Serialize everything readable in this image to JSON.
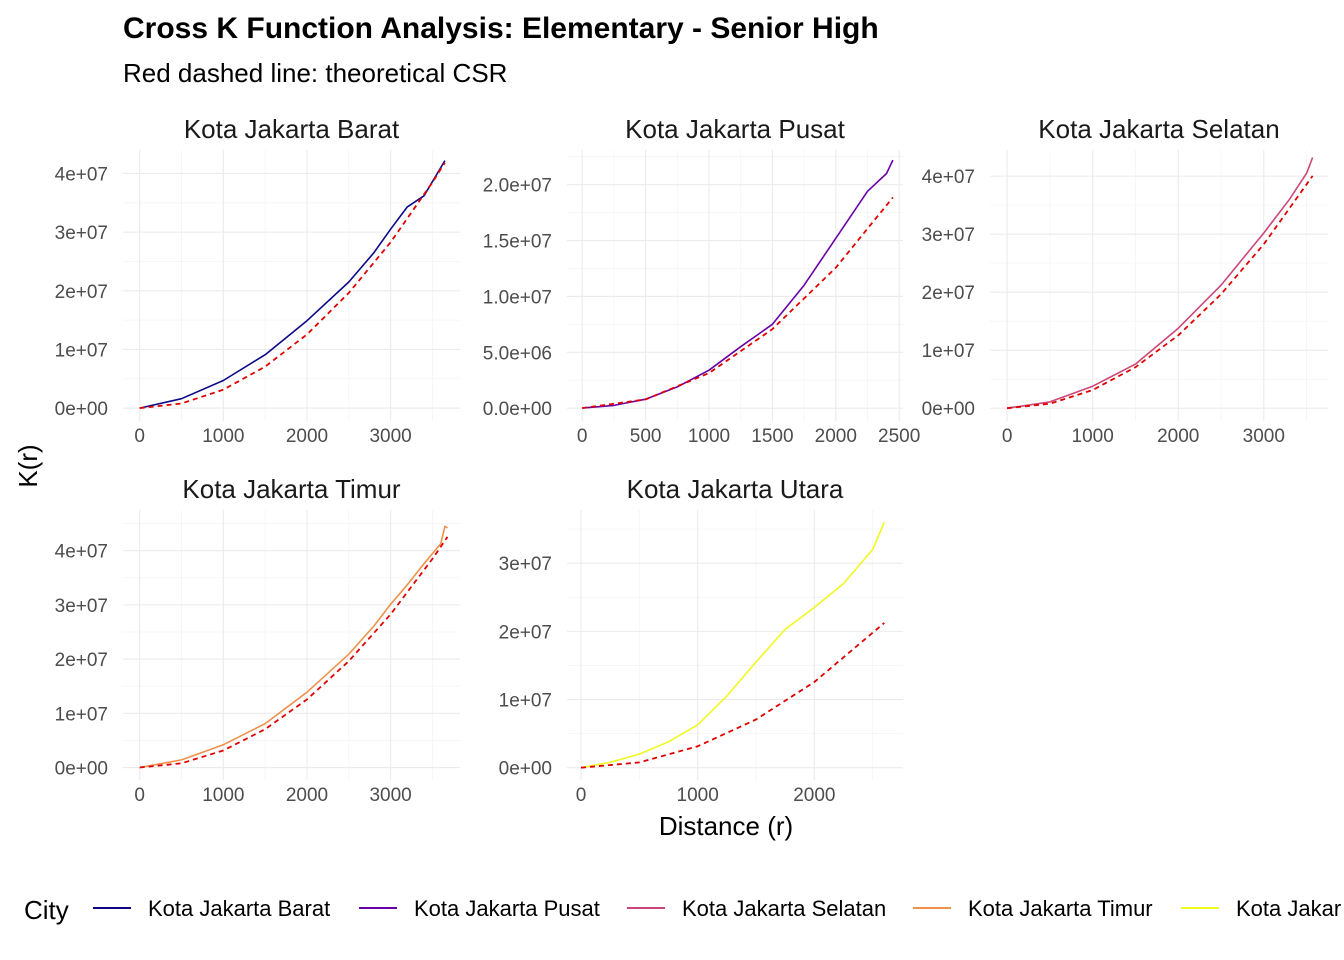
{
  "title": "Cross K Function Analysis: Elementary - Senior High",
  "subtitle": "Red dashed line: theoretical CSR",
  "xlabel": "Distance (r)",
  "ylabel": "K(r)",
  "legend": {
    "title": "City",
    "position": "bottom",
    "entries": [
      {
        "label": "Kota Jakarta Barat",
        "color": "#0d0887"
      },
      {
        "label": "Kota Jakarta Pusat",
        "color": "#6a00a8"
      },
      {
        "label": "Kota Jakarta Selatan",
        "color": "#cc4778"
      },
      {
        "label": "Kota Jakarta Timur",
        "color": "#f0914b"
      },
      {
        "label": "Kota Jakar",
        "color": "#f0f921"
      }
    ]
  },
  "chart_data": [
    {
      "type": "line",
      "title": "Kota Jakarta Barat",
      "color": "#0d0887",
      "xlim": [
        -200,
        3830
      ],
      "ylim": [
        -2200000,
        44000000
      ],
      "xticks": [
        0,
        1000,
        2000,
        3000
      ],
      "xtick_labels": [
        "0",
        "1000",
        "2000",
        "3000"
      ],
      "yticks": [
        0,
        10000000,
        20000000,
        30000000,
        40000000
      ],
      "ytick_labels": [
        "0e+00",
        "1e+07",
        "2e+07",
        "3e+07",
        "4e+07"
      ],
      "series": [
        {
          "name": "Kota Jakarta Barat",
          "x": [
            0,
            500,
            1000,
            1500,
            2000,
            2500,
            2800,
            3000,
            3200,
            3400,
            3650
          ],
          "y": [
            0,
            1600000,
            4700000,
            9100000,
            14900000,
            21500000,
            26500000,
            30500000,
            34300000,
            36200000,
            42200000
          ]
        },
        {
          "name": "CSR",
          "x": [
            0,
            500,
            1000,
            1500,
            2000,
            2500,
            3000,
            3500,
            3650
          ],
          "y": [
            0,
            790000,
            3140000,
            7070000,
            12570000,
            19630000,
            28270000,
            38480000,
            41850000
          ]
        }
      ]
    },
    {
      "type": "line",
      "title": "Kota Jakarta Pusat",
      "color": "#6a00a8",
      "xlim": [
        -120,
        2530
      ],
      "ylim": [
        -1150000,
        23100000
      ],
      "xticks": [
        0,
        500,
        1000,
        1500,
        2000,
        2500
      ],
      "xtick_labels": [
        "0",
        "500",
        "1000",
        "1500",
        "2000",
        "2500"
      ],
      "yticks": [
        0,
        5000000,
        10000000,
        15000000,
        20000000
      ],
      "ytick_labels": [
        "0.0e+00",
        "5.0e+06",
        "1.0e+07",
        "1.5e+07",
        "2.0e+07"
      ],
      "series": [
        {
          "name": "Kota Jakarta Pusat",
          "x": [
            0,
            250,
            500,
            750,
            1000,
            1250,
            1500,
            1750,
            2000,
            2250,
            2400,
            2450
          ],
          "y": [
            0,
            250000,
            800000,
            1900000,
            3400000,
            5500000,
            7500000,
            11000000,
            15200000,
            19400000,
            21000000,
            22200000
          ]
        },
        {
          "name": "CSR",
          "x": [
            0,
            500,
            1000,
            1500,
            2000,
            2450
          ],
          "y": [
            0,
            785000,
            3140000,
            7070000,
            12570000,
            18860000
          ]
        }
      ]
    },
    {
      "type": "line",
      "title": "Kota Jakarta Selatan",
      "color": "#cc4778",
      "xlim": [
        -200,
        3750
      ],
      "ylim": [
        -2200000,
        44500000
      ],
      "xticks": [
        0,
        1000,
        2000,
        3000
      ],
      "xtick_labels": [
        "0",
        "1000",
        "2000",
        "3000"
      ],
      "yticks": [
        0,
        10000000,
        20000000,
        30000000,
        40000000
      ],
      "ytick_labels": [
        "0e+00",
        "1e+07",
        "2e+07",
        "3e+07",
        "4e+07"
      ],
      "series": [
        {
          "name": "Kota Jakarta Selatan",
          "x": [
            0,
            500,
            1000,
            1500,
            2000,
            2500,
            3000,
            3300,
            3500,
            3570
          ],
          "y": [
            0,
            1100000,
            3800000,
            7600000,
            13800000,
            21200000,
            30200000,
            36000000,
            40500000,
            43200000
          ]
        },
        {
          "name": "CSR",
          "x": [
            0,
            500,
            1000,
            1500,
            2000,
            2500,
            3000,
            3570
          ],
          "y": [
            0,
            785000,
            3140000,
            7070000,
            12570000,
            19630000,
            28270000,
            40040000
          ]
        }
      ]
    },
    {
      "type": "line",
      "title": "Kota Jakarta Timur",
      "color": "#f0914b",
      "xlim": [
        -200,
        3830
      ],
      "ylim": [
        -2300000,
        47500000
      ],
      "xticks": [
        0,
        1000,
        2000,
        3000
      ],
      "xtick_labels": [
        "0",
        "1000",
        "2000",
        "3000"
      ],
      "yticks": [
        0,
        10000000,
        20000000,
        30000000,
        40000000
      ],
      "ytick_labels": [
        "0e+00",
        "1e+07",
        "2e+07",
        "3e+07",
        "4e+07"
      ],
      "series": [
        {
          "name": "Kota Jakarta Timur",
          "x": [
            0,
            500,
            1000,
            1500,
            2000,
            2500,
            2800,
            3000,
            3200,
            3400,
            3600,
            3650,
            3680
          ],
          "y": [
            0,
            1400000,
            4200000,
            8100000,
            13900000,
            20900000,
            26100000,
            30100000,
            33700000,
            37600000,
            41300000,
            44500000,
            44200000
          ]
        },
        {
          "name": "CSR",
          "x": [
            0,
            500,
            1000,
            1500,
            2000,
            2500,
            3000,
            3500,
            3680
          ],
          "y": [
            0,
            785000,
            3140000,
            7070000,
            12570000,
            19630000,
            28270000,
            38480000,
            42540000
          ]
        }
      ]
    },
    {
      "type": "line",
      "title": "Kota Jakarta Utara",
      "color": "#f0f921",
      "xlim": [
        -120,
        2760
      ],
      "ylim": [
        -1800000,
        37800000
      ],
      "xticks": [
        0,
        1000,
        2000
      ],
      "xtick_labels": [
        "0",
        "1000",
        "2000"
      ],
      "yticks": [
        0,
        10000000,
        20000000,
        30000000
      ],
      "ytick_labels": [
        "0e+00",
        "1e+07",
        "2e+07",
        "3e+07"
      ],
      "series": [
        {
          "name": "Kota Jakarta Utara",
          "x": [
            0,
            250,
            500,
            750,
            1000,
            1250,
            1500,
            1750,
            2000,
            2250,
            2500,
            2600
          ],
          "y": [
            0,
            800000,
            2000000,
            3800000,
            6300000,
            10500000,
            15500000,
            20300000,
            23500000,
            27000000,
            32000000,
            36000000
          ]
        },
        {
          "name": "CSR",
          "x": [
            0,
            500,
            1000,
            1500,
            2000,
            2600
          ],
          "y": [
            0,
            785000,
            3140000,
            7070000,
            12570000,
            21240000
          ]
        }
      ]
    }
  ]
}
